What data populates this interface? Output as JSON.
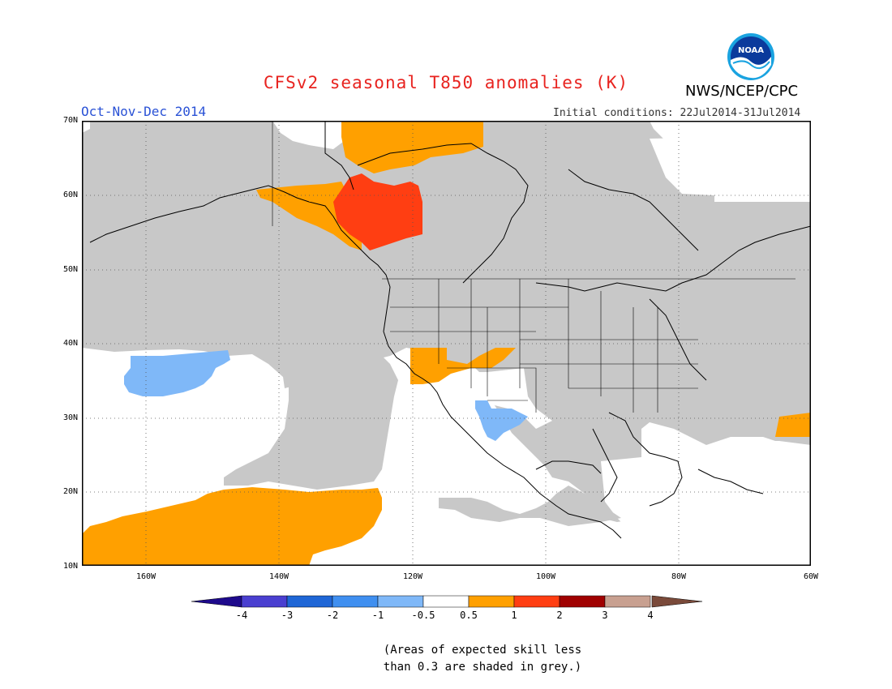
{
  "title": "CFSv2 seasonal T850 anomalies (K)",
  "organization": "NWS/NCEP/CPC",
  "logo_text": "NOAA",
  "period": "Oct-Nov-Dec 2014",
  "initial_conditions": "Initial conditions: 22Jul2014-31Jul2014",
  "lat_labels": [
    "70N",
    "60N",
    "50N",
    "40N",
    "30N",
    "20N",
    "10N"
  ],
  "lon_labels": [
    "160W",
    "140W",
    "120W",
    "100W",
    "80W",
    "60W"
  ],
  "colorbar": {
    "labels": [
      "-4",
      "-3",
      "-2",
      "-1",
      "-0.5",
      "0.5",
      "1",
      "2",
      "3",
      "4"
    ],
    "colors": [
      "#1e0a8c",
      "#4a3fd0",
      "#1f66d6",
      "#3f8ff0",
      "#7fb8f8",
      "#ffffff",
      "#ffa000",
      "#ff3e12",
      "#a00000",
      "#c8a090",
      "#7a4a3a"
    ]
  },
  "note_line1": "(Areas of expected skill less",
  "note_line2": "than 0.3 are shaded in grey.)",
  "legend_colors": {
    "grey": "#c8c8c8",
    "orange": "#ffa000",
    "red": "#ff3e12",
    "lightblue": "#7fb8f8"
  }
}
